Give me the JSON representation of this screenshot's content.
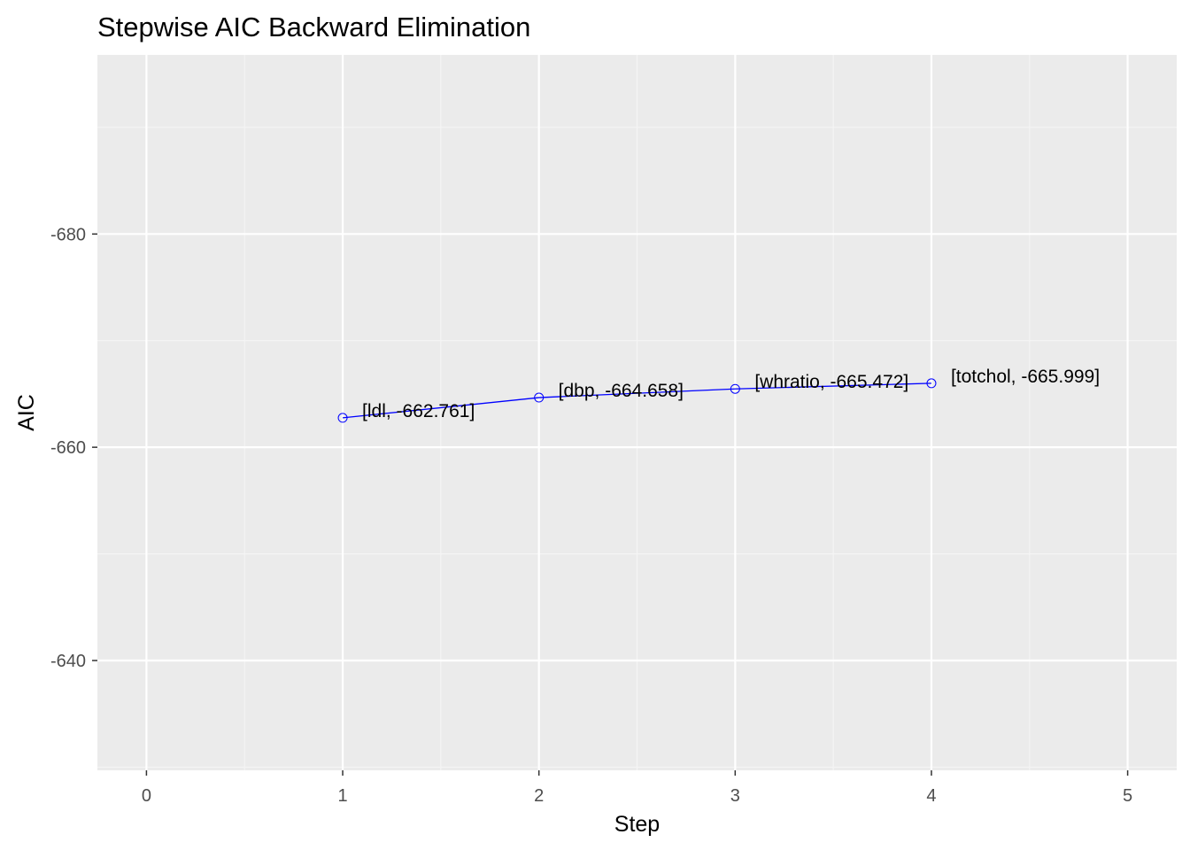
{
  "chart_data": {
    "type": "line",
    "title": "Stepwise AIC Backward Elimination",
    "xlabel": "Step",
    "ylabel": "AIC",
    "xlim": [
      -0.25,
      5.25
    ],
    "ylim": [
      -696.8,
      -629.7
    ],
    "y_reversed": true,
    "x_ticks": [
      0,
      1,
      2,
      3,
      4,
      5
    ],
    "y_ticks": [
      -680,
      -660,
      -640
    ],
    "x_tick_labels": [
      "0",
      "1",
      "2",
      "3",
      "4",
      "5"
    ],
    "y_tick_labels": [
      "-680",
      "-660",
      "-640"
    ],
    "grid": true,
    "legend": "none",
    "series": [
      {
        "x": [
          1,
          2,
          3,
          4
        ],
        "y": [
          -662.761,
          -664.658,
          -665.472,
          -665.999
        ],
        "labels": [
          "[ldl, -662.761]",
          "[dbp, -664.658]",
          "[whratio, -665.472]",
          "[totchol, -665.999]"
        ],
        "color": "#0000ff"
      }
    ]
  },
  "colors": {
    "panel": "#ebebeb",
    "grid_major": "#ffffff",
    "grid_minor": "#f5f5f5",
    "line": "#0000ff",
    "text": "#000000",
    "tick_text": "#4d4d4d",
    "tick_mark": "#333333"
  }
}
